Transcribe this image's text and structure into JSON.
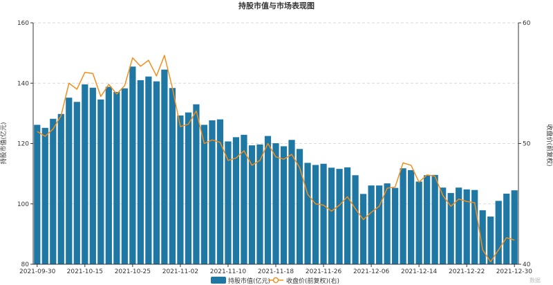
{
  "title": "持股市值与市场表现图",
  "watermark": "数据",
  "chart_data": {
    "type": "bar+line",
    "x": [
      "2021-09-30",
      "2021-10-08",
      "2021-10-11",
      "2021-10-12",
      "2021-10-13",
      "2021-10-14",
      "2021-10-15",
      "2021-10-18",
      "2021-10-19",
      "2021-10-20",
      "2021-10-21",
      "2021-10-22",
      "2021-10-25",
      "2021-10-26",
      "2021-10-27",
      "2021-10-28",
      "2021-10-29",
      "2021-11-01",
      "2021-11-02",
      "2021-11-03",
      "2021-11-04",
      "2021-11-05",
      "2021-11-08",
      "2021-11-09",
      "2021-11-10",
      "2021-11-11",
      "2021-11-12",
      "2021-11-15",
      "2021-11-16",
      "2021-11-17",
      "2021-11-18",
      "2021-11-19",
      "2021-11-22",
      "2021-11-23",
      "2021-11-24",
      "2021-11-25",
      "2021-11-26",
      "2021-11-29",
      "2021-11-30",
      "2021-12-01",
      "2021-12-02",
      "2021-12-03",
      "2021-12-06",
      "2021-12-07",
      "2021-12-08",
      "2021-12-09",
      "2021-12-10",
      "2021-12-13",
      "2021-12-14",
      "2021-12-15",
      "2021-12-16",
      "2021-12-17",
      "2021-12-20",
      "2021-12-21",
      "2021-12-22",
      "2021-12-23",
      "2021-12-24",
      "2021-12-27",
      "2021-12-28",
      "2021-12-29",
      "2021-12-30"
    ],
    "x_tick_labels": [
      "2021-09-30",
      "2021-10-15",
      "2021-10-25",
      "2021-11-02",
      "2021-11-10",
      "2021-11-18",
      "2021-11-26",
      "2021-12-06",
      "2021-12-14",
      "2021-12-22",
      "2021-12-30"
    ],
    "x_tick_index": [
      0,
      6,
      12,
      18,
      24,
      30,
      36,
      42,
      48,
      54,
      60
    ],
    "series": [
      {
        "name": "持股市值(亿元)",
        "type": "bar",
        "axis": "left",
        "color": "#1f77a4",
        "values": [
          126.2,
          125.2,
          128.2,
          129.8,
          135.2,
          133.8,
          139.6,
          138.5,
          134.6,
          138.8,
          137.1,
          138.3,
          145.5,
          141.0,
          142.2,
          140.6,
          144.5,
          138.4,
          129.3,
          130.3,
          133.0,
          126.2,
          127.7,
          128.0,
          120.7,
          122.1,
          122.9,
          119.4,
          119.7,
          122.5,
          120.1,
          119.1,
          121.2,
          118.2,
          113.6,
          112.9,
          113.3,
          112.0,
          111.6,
          112.1,
          109.5,
          103.3,
          106.1,
          106.1,
          106.8,
          105.3,
          111.8,
          111.2,
          107.4,
          109.5,
          109.6,
          105.4,
          103.6,
          105.4,
          104.8,
          104.6,
          97.9,
          95.8,
          101.0,
          103.4,
          104.5
        ]
      },
      {
        "name": "收盘价(前复权)(右)",
        "type": "line",
        "axis": "right",
        "color": "#f28e1c",
        "values": [
          51.0,
          50.6,
          51.2,
          52.3,
          55.0,
          54.5,
          55.9,
          55.8,
          53.9,
          54.9,
          54.1,
          54.8,
          57.1,
          56.4,
          56.9,
          55.6,
          57.3,
          54.6,
          51.4,
          51.6,
          52.7,
          50.0,
          50.3,
          50.1,
          48.6,
          48.8,
          49.4,
          48.2,
          48.6,
          50.0,
          48.9,
          48.7,
          49.1,
          48.0,
          45.8,
          45.0,
          44.9,
          44.4,
          44.9,
          45.6,
          44.6,
          43.7,
          44.3,
          44.8,
          46.3,
          46.4,
          48.4,
          48.2,
          46.8,
          47.4,
          47.3,
          45.7,
          44.8,
          45.4,
          45.2,
          45.1,
          41.2,
          40.2,
          41.2,
          42.2,
          42.0
        ]
      }
    ],
    "y_left": {
      "label": "持股市值(亿元)",
      "min": 80,
      "max": 160,
      "ticks": [
        80,
        100,
        120,
        140,
        160
      ]
    },
    "y_right": {
      "label": "收盘价(前复权)",
      "min": 40,
      "max": 60,
      "ticks": [
        40,
        50,
        60
      ]
    },
    "grid": "horizontal-dashed",
    "legend_position": "bottom-center"
  }
}
